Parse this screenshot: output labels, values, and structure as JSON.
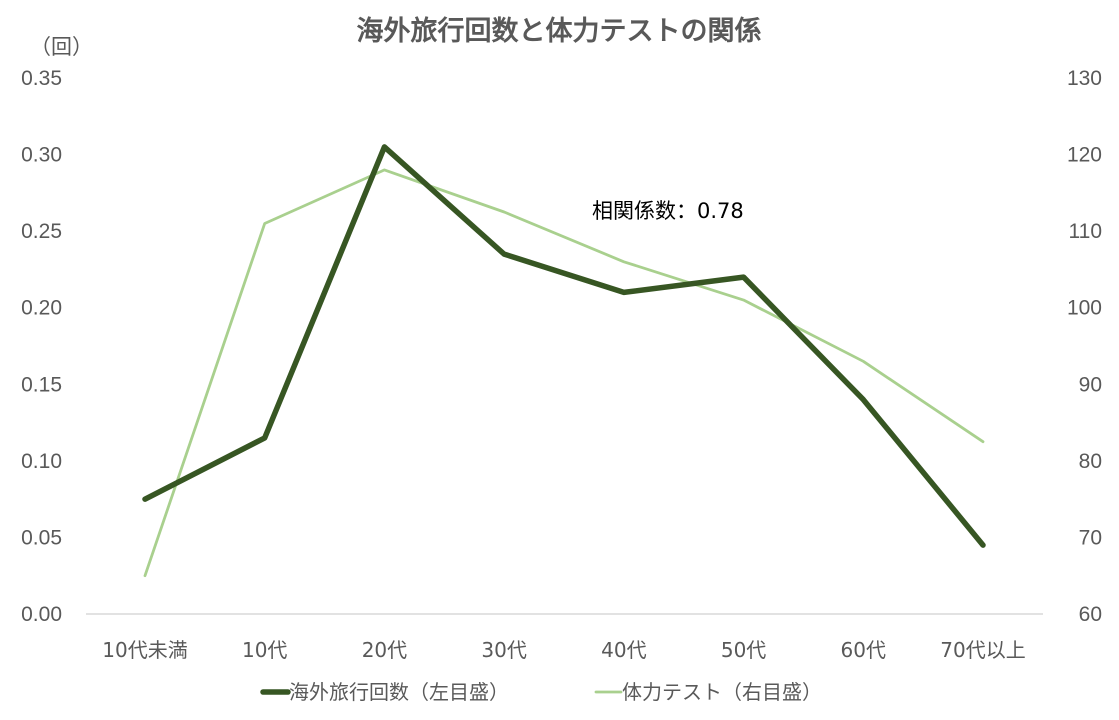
{
  "chart_data": {
    "type": "line",
    "title": "海外旅行回数と体力テストの関係",
    "left_axis_unit": "（回）",
    "categories": [
      "10代未満",
      "10代",
      "20代",
      "30代",
      "40代",
      "50代",
      "60代",
      "70代以上"
    ],
    "y_left": {
      "min": 0,
      "max": 0.35,
      "step": 0.05,
      "tick_labels": [
        "0.00",
        "0.05",
        "0.10",
        "0.15",
        "0.20",
        "0.25",
        "0.30",
        "0.35"
      ]
    },
    "y_right": {
      "min": 60,
      "max": 130,
      "step": 10,
      "tick_labels": [
        "60",
        "70",
        "80",
        "90",
        "100",
        "110",
        "120",
        "130"
      ]
    },
    "series": [
      {
        "name": "海外旅行回数（左目盛）",
        "axis": "left",
        "color": "#375623",
        "values": [
          0.075,
          0.115,
          0.305,
          0.235,
          0.21,
          0.22,
          0.14,
          0.045
        ]
      },
      {
        "name": "体力テスト（右目盛）",
        "axis": "right",
        "color": "#a9d08e",
        "values": [
          65,
          111,
          118,
          112.5,
          106,
          101,
          93,
          82.5
        ]
      }
    ],
    "annotation": "相関係数：0.78",
    "grid": false,
    "legend_position": "bottom"
  }
}
